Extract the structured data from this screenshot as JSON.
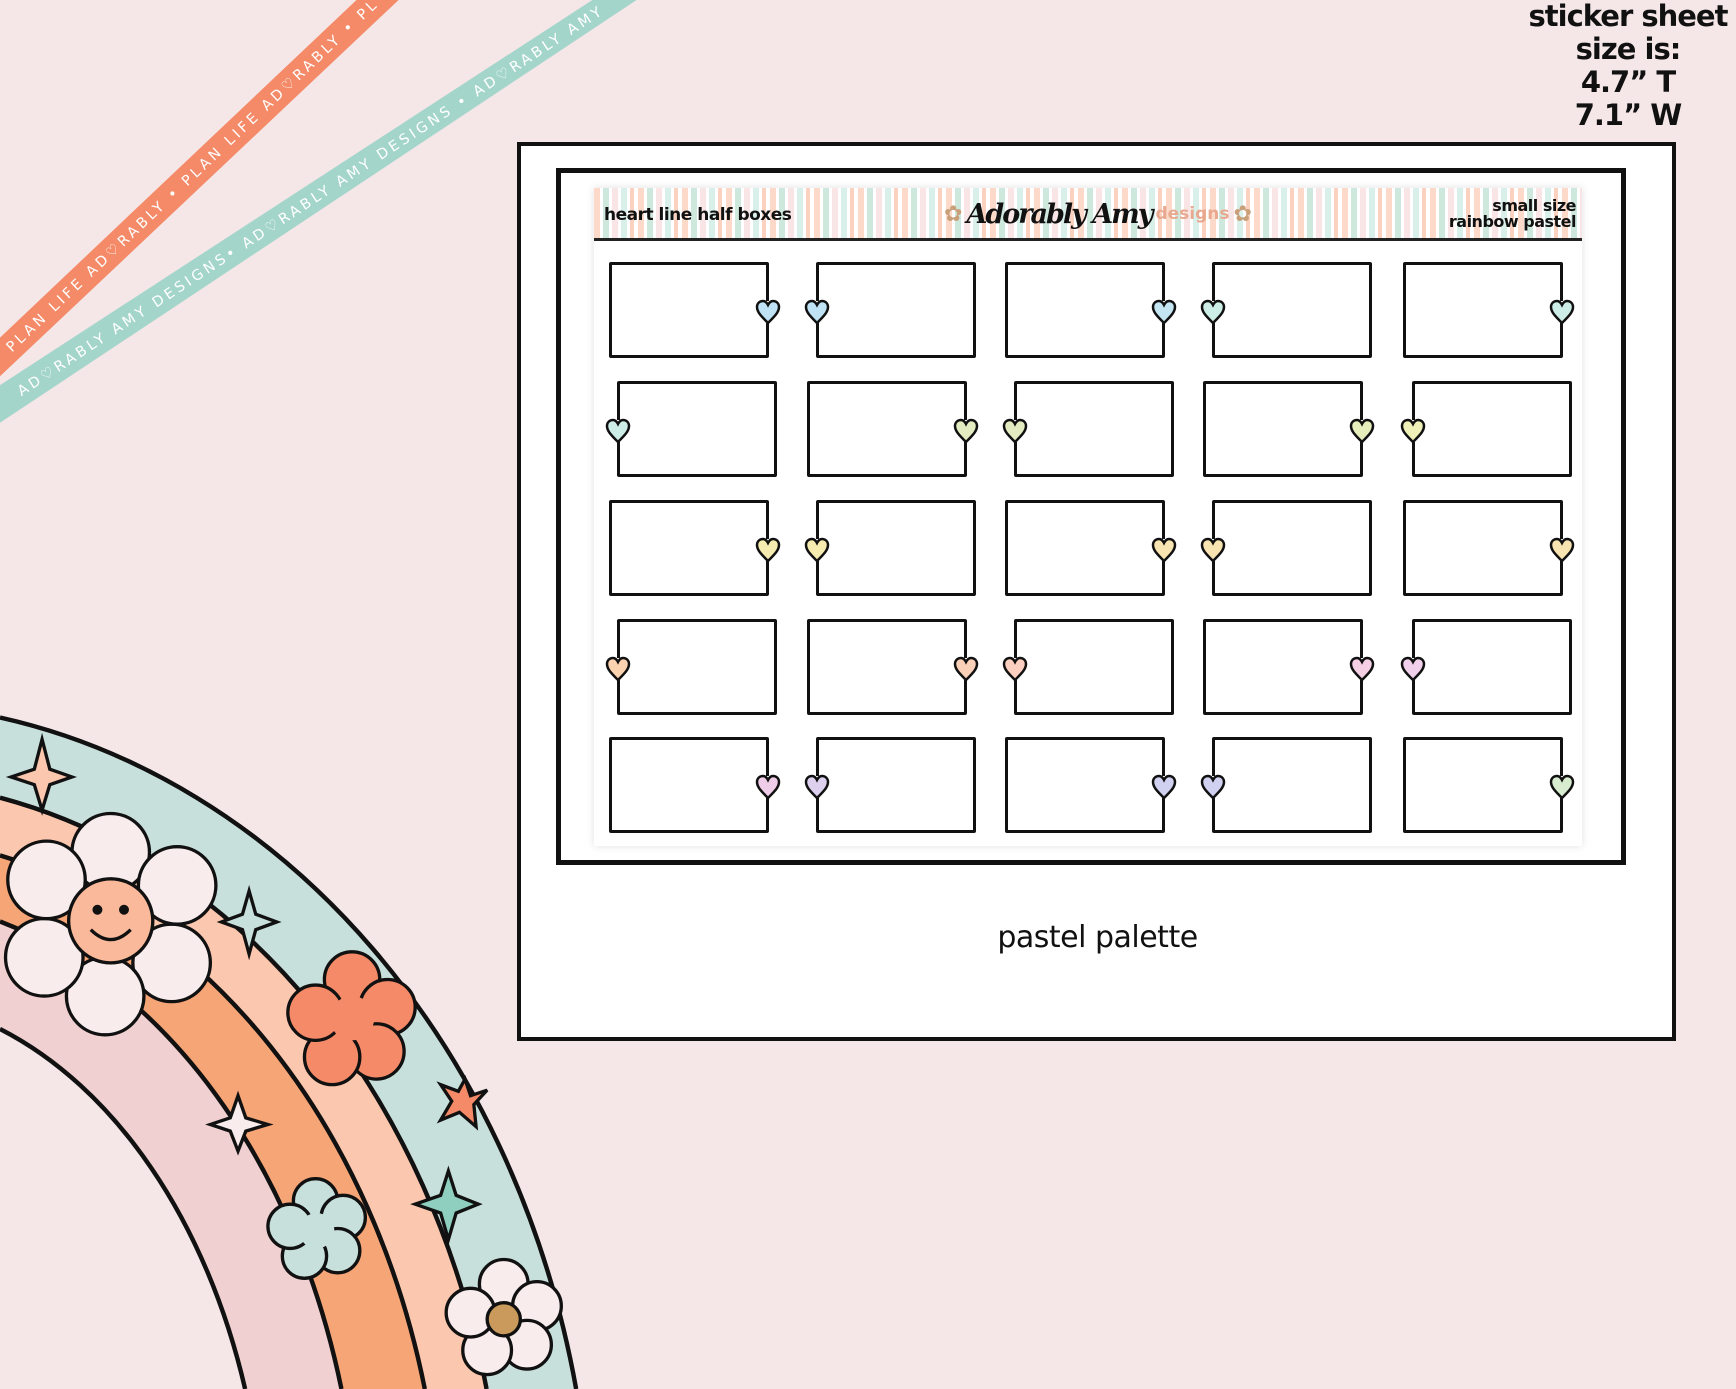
{
  "size_note": {
    "lines": [
      "sticker sheet",
      "size is:",
      "4.7” T",
      "7.1” W"
    ]
  },
  "ribbons": {
    "orange_text": "PLAN LIFE AD♡RABLY • PLAN LIFE AD♡RABLY • PLAN LIFE AD♡RABLY",
    "teal_text": "AD♡RABLY AMY DESIGNS• AD♡RABLY AMY DESIGNS • AD♡RABLY AMY",
    "colors": {
      "orange": "#f48a67",
      "teal": "#a4d5cb"
    }
  },
  "sheet": {
    "title": "heart line half boxes",
    "logo": {
      "script": "Adorably Amy",
      "suffix": "designs"
    },
    "size_label": "small size",
    "palette_label": "rainbow pastel",
    "boxes": [
      {
        "heart_side": "right",
        "heart_color": "#bfe3f5"
      },
      {
        "heart_side": "left",
        "heart_color": "#bfe3f5"
      },
      {
        "heart_side": "right",
        "heart_color": "#c4e6f2"
      },
      {
        "heart_side": "left",
        "heart_color": "#cdeee6"
      },
      {
        "heart_side": "right",
        "heart_color": "#cdeee6"
      },
      {
        "heart_side": "left",
        "heart_color": "#cdeee6"
      },
      {
        "heart_side": "right",
        "heart_color": "#e3ecc0"
      },
      {
        "heart_side": "left",
        "heart_color": "#e3ecc0"
      },
      {
        "heart_side": "right",
        "heart_color": "#e6efbc"
      },
      {
        "heart_side": "left",
        "heart_color": "#eef0b8"
      },
      {
        "heart_side": "right",
        "heart_color": "#f6ecb0"
      },
      {
        "heart_side": "left",
        "heart_color": "#f6ecb0"
      },
      {
        "heart_side": "right",
        "heart_color": "#f8e4b0"
      },
      {
        "heart_side": "left",
        "heart_color": "#f8e4b0"
      },
      {
        "heart_side": "right",
        "heart_color": "#f8e4b0"
      },
      {
        "heart_side": "left",
        "heart_color": "#fbd3b0"
      },
      {
        "heart_side": "right",
        "heart_color": "#fbd0b8"
      },
      {
        "heart_side": "left",
        "heart_color": "#fbd0c0"
      },
      {
        "heart_side": "right",
        "heart_color": "#f5d0e4"
      },
      {
        "heart_side": "left",
        "heart_color": "#f0d0ea"
      },
      {
        "heart_side": "right",
        "heart_color": "#efcde8"
      },
      {
        "heart_side": "left",
        "heart_color": "#dcd0ee"
      },
      {
        "heart_side": "right",
        "heart_color": "#d0d0f0"
      },
      {
        "heart_side": "left",
        "heart_color": "#d0d0f0"
      },
      {
        "heart_side": "right",
        "heart_color": "#d8ecd0"
      }
    ]
  },
  "caption": "pastel palette",
  "colors": {
    "background": "#f5e7e8",
    "rainbow": [
      "#c8e0dc",
      "#fbc7ae",
      "#f6a577",
      "#f0d0d0"
    ]
  }
}
